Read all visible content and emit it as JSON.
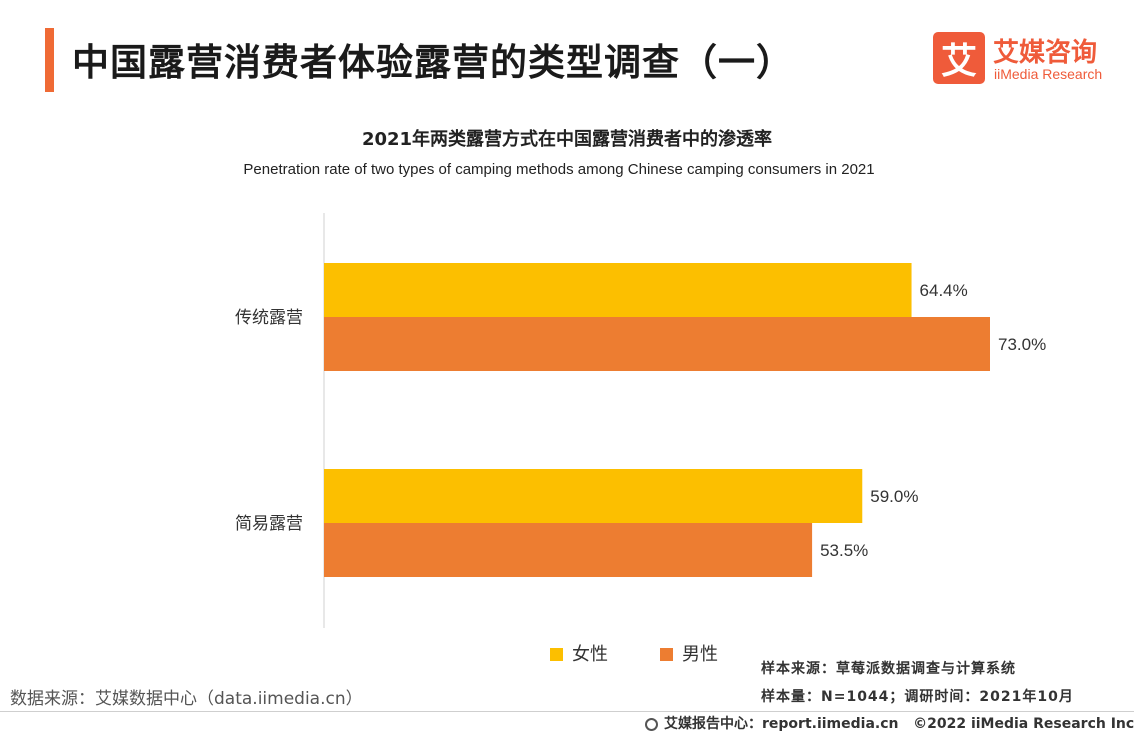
{
  "header": {
    "title": "中国露营消费者体验露营的类型调查（一）",
    "logo_mark": "艾",
    "logo_cn": "艾媒咨询",
    "logo_en": "iiMedia Research"
  },
  "chart_data": {
    "type": "bar",
    "orientation": "horizontal",
    "title": "2021年两类露营方式在中国露营消费者中的渗透率",
    "subtitle": "Penetration rate of two types of camping methods among Chinese camping consumers in 2021",
    "categories": [
      "传统露营",
      "简易露营"
    ],
    "series": [
      {
        "name": "女性",
        "values": [
          64.4,
          59.0
        ],
        "labels": [
          "64.4%",
          "59.0%"
        ],
        "color": "#fcbf00"
      },
      {
        "name": "男性",
        "values": [
          73.0,
          53.5
        ],
        "labels": [
          "73.0%",
          "53.5%"
        ],
        "color": "#ed7d31"
      }
    ],
    "xlim": [
      0,
      80
    ],
    "grid": false,
    "legend_position": "bottom"
  },
  "footer": {
    "data_source": "数据来源：艾媒数据中心（data.iimedia.cn）",
    "sample_source": "样本来源：草莓派数据调查与计算系统",
    "sample_size": "样本量：N=1044；调研时间：2021年10月",
    "report_center": "艾媒报告中心：report.iimedia.cn",
    "copyright": "©2022  iiMedia Research  Inc"
  },
  "colors": {
    "accent": "#ef6a35",
    "brand": "#ef5b3a",
    "female": "#fcbf00",
    "male": "#ed7d31"
  },
  "icons": {
    "globe": "globe-icon"
  }
}
